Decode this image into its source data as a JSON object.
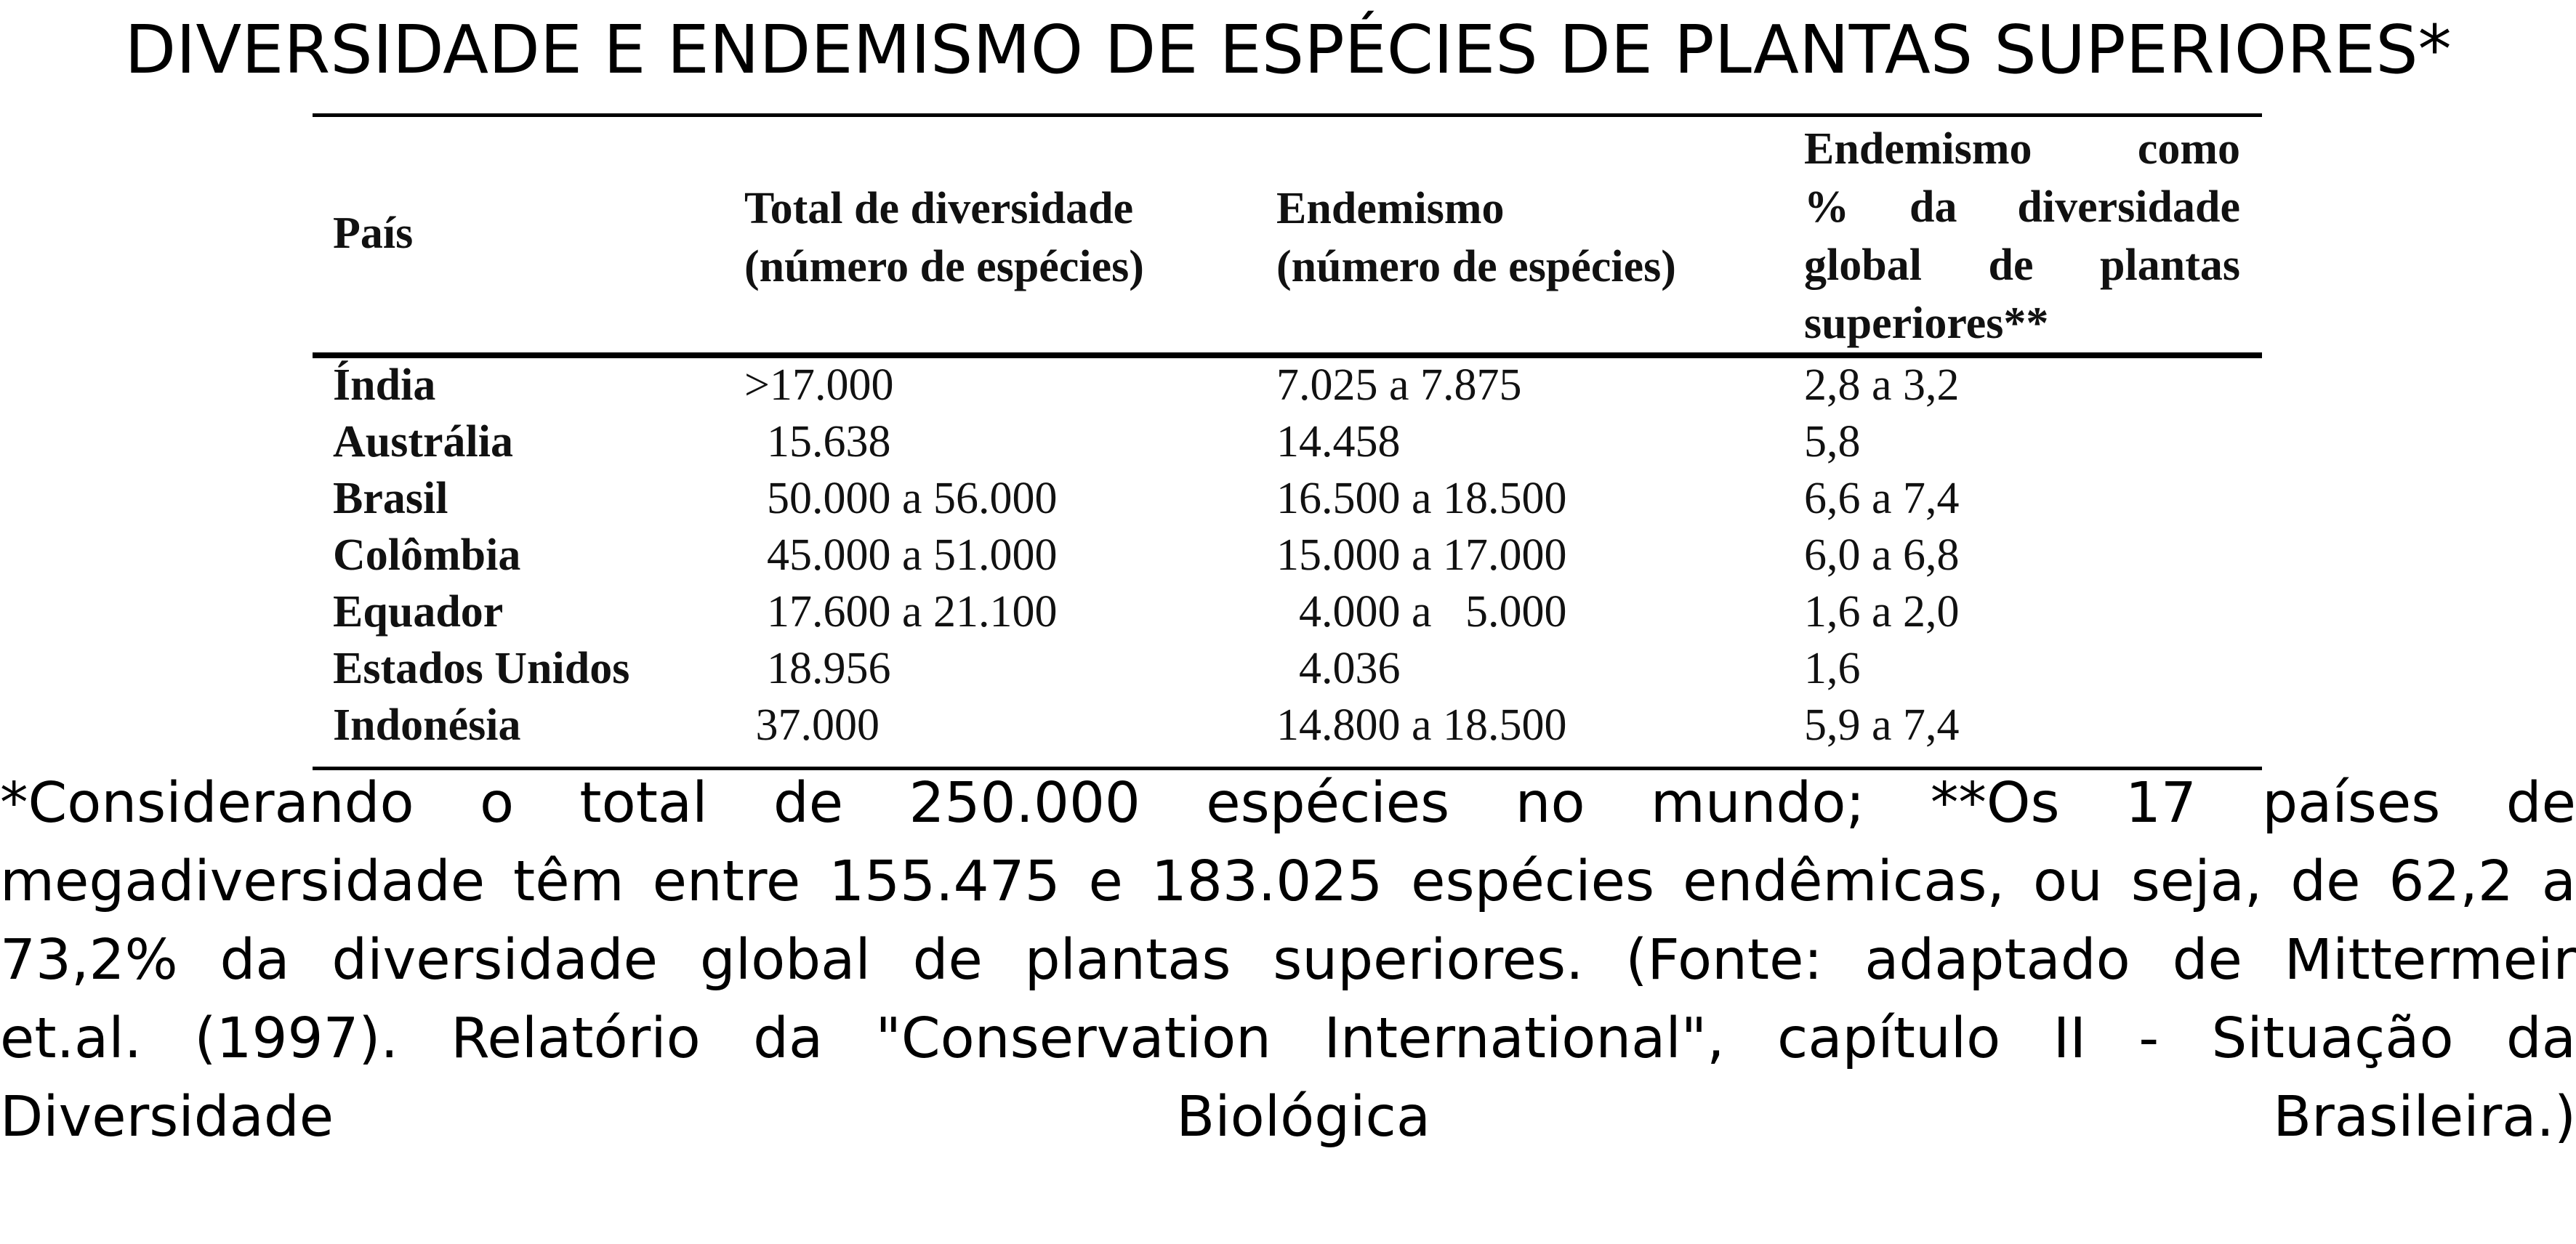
{
  "title": "DIVERSIDADE E ENDEMISMO DE ESPÉCIES DE PLANTAS SUPERIORES*",
  "table": {
    "headers": {
      "country": "País",
      "total_line1": "Total de diversidade",
      "total_line2": "(número de espécies)",
      "endem_line1": "Endemismo",
      "endem_line2": "(número de espécies)",
      "pct_line1": "Endemismo como",
      "pct_line2": "% da diversidade",
      "pct_line3": "global de plantas",
      "pct_line4": "superiores**"
    },
    "rows": [
      {
        "country": "Índia",
        "total": ">17.000",
        "endemism": "7.025 a 7.875",
        "pct": "2,8 a 3,2"
      },
      {
        "country": "Austrália",
        "total": "  15.638",
        "endemism": "14.458",
        "pct": "5,8"
      },
      {
        "country": "Brasil",
        "total": "  50.000 a 56.000",
        "endemism": "16.500 a 18.500",
        "pct": "6,6 a 7,4"
      },
      {
        "country": "Colômbia",
        "total": "  45.000 a 51.000",
        "endemism": "15.000 a 17.000",
        "pct": "6,0 a 6,8"
      },
      {
        "country": "Equador",
        "total": "  17.600 a 21.100",
        "endemism": "  4.000 a   5.000",
        "pct": "1,6 a 2,0"
      },
      {
        "country": "Estados Unidos",
        "total": "  18.956",
        "endemism": "  4.036",
        "pct": "1,6"
      },
      {
        "country": "Indonésia",
        "total": " 37.000",
        "endemism": "14.800 a 18.500",
        "pct": "5,9 a 7,4"
      }
    ]
  },
  "footnote": {
    "line1": "*Considerando o total de 250.000 espécies no mundo; **Os 17 países de",
    "line2": "megadiversidade têm entre 155.475 e 183.025 espécies endêmicas, ou seja, de 62,2 a",
    "line3": "73,2% da diversidade global de plantas superiores. (Fonte: adaptado de Mittermeir",
    "line4": "et.al. (1997). Relatório da \"Conservation International\", capítulo II - Situação da",
    "line5": "Diversidade Biológica Brasileira.)"
  }
}
